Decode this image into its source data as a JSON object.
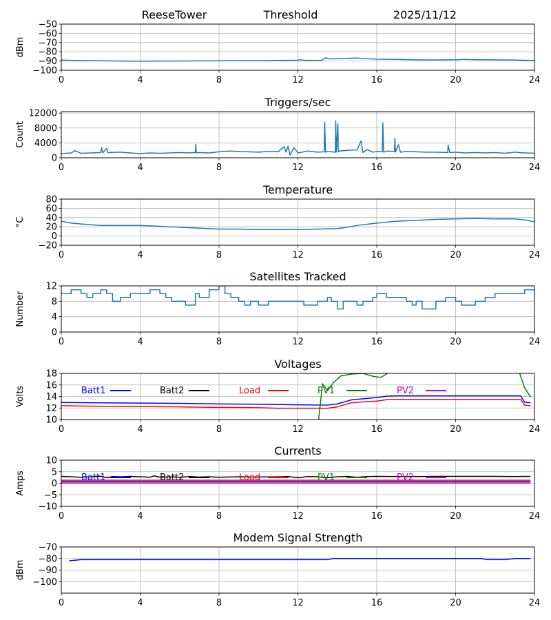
{
  "header": {
    "station": "ReeseTower",
    "plot": "Threshold",
    "date": "2025/11/12"
  },
  "chart_data": [
    {
      "type": "line",
      "title": "",
      "ylabel": "dBm",
      "xlim": [
        0,
        24
      ],
      "ylim": [
        -100,
        -50
      ],
      "xticks": [
        "0",
        "4",
        "8",
        "12",
        "16",
        "20",
        "24"
      ],
      "yticks": [
        "-100",
        "-90",
        "-80",
        "-70",
        "-60",
        "-50"
      ],
      "grid": true,
      "series": [
        {
          "name": "Threshold",
          "color": "#1f77b4",
          "x": [
            0,
            0.5,
            1,
            2,
            3,
            4,
            5,
            6,
            7,
            8,
            9,
            10,
            11,
            12,
            12.1,
            12.3,
            13.2,
            13.4,
            13.6,
            14,
            14.5,
            15,
            15.5,
            16,
            17,
            18,
            19,
            20,
            20.5,
            21,
            22,
            23,
            24
          ],
          "y": [
            -89,
            -89.3,
            -89.5,
            -89.7,
            -90,
            -90.2,
            -90,
            -90,
            -89.8,
            -89.7,
            -89.6,
            -89.6,
            -89.4,
            -89.2,
            -88.5,
            -89.3,
            -89.2,
            -86.5,
            -87.6,
            -87.5,
            -87,
            -86.8,
            -87.5,
            -88,
            -88.2,
            -88.7,
            -88.8,
            -88.6,
            -88.2,
            -88.5,
            -88.7,
            -88.9,
            -89.5
          ]
        }
      ]
    },
    {
      "type": "line",
      "title": "Triggers/sec",
      "ylabel": "Count",
      "xlim": [
        0,
        24
      ],
      "ylim": [
        0,
        12400
      ],
      "xticks": [
        "0",
        "4",
        "8",
        "12",
        "16",
        "20",
        "24"
      ],
      "yticks": [
        "0",
        "4000",
        "8000",
        "12000"
      ],
      "grid": true,
      "series": [
        {
          "name": "Triggers",
          "color": "#1f77b4",
          "x": [
            0,
            0.5,
            0.7,
            1,
            1.5,
            2,
            2.05,
            2.1,
            2.3,
            2.35,
            3,
            3.5,
            4,
            4.5,
            5,
            5.5,
            6,
            6.5,
            6.8,
            6.82,
            6.85,
            7,
            7.5,
            8,
            8.5,
            9,
            9.5,
            10,
            10.5,
            11,
            11.3,
            11.4,
            11.5,
            11.6,
            11.8,
            12,
            12.5,
            13,
            13.33,
            13.36,
            13.4,
            13.5,
            13.9,
            13.92,
            13.95,
            14.03,
            14.05,
            14.1,
            14.5,
            15,
            15.2,
            15.3,
            15.5,
            15.8,
            16,
            16.28,
            16.31,
            16.35,
            16.5,
            16.9,
            16.92,
            16.95,
            17.1,
            17.2,
            17.5,
            18,
            18.5,
            19,
            19.6,
            19.62,
            19.7,
            20,
            20.5,
            21,
            21.5,
            22,
            22.5,
            23,
            23.5,
            24
          ],
          "y": [
            1100,
            1300,
            1900,
            1200,
            1300,
            1400,
            2700,
            1300,
            2500,
            1400,
            1500,
            1300,
            1100,
            1300,
            1200,
            1300,
            1400,
            1300,
            1400,
            3600,
            1300,
            1400,
            1300,
            1600,
            1800,
            1700,
            1600,
            1500,
            1700,
            1600,
            3000,
            1500,
            3100,
            700,
            2700,
            1300,
            1800,
            1500,
            1600,
            9600,
            1500,
            1700,
            1500,
            9900,
            1500,
            9100,
            1600,
            1800,
            2000,
            2100,
            4500,
            1400,
            2200,
            1500,
            1700,
            1600,
            9400,
            1500,
            1800,
            1700,
            5200,
            1500,
            3500,
            1500,
            1700,
            1600,
            1500,
            1500,
            1400,
            3400,
            1400,
            1500,
            1300,
            1400,
            1300,
            1400,
            1200,
            1500,
            1300,
            1200
          ]
        }
      ]
    },
    {
      "type": "line",
      "title": "Temperature",
      "ylabel": "°C",
      "xlim": [
        0,
        24
      ],
      "ylim": [
        -20,
        80
      ],
      "xticks": [
        "0",
        "4",
        "8",
        "12",
        "16",
        "20",
        "24"
      ],
      "yticks": [
        "-20",
        "0",
        "20",
        "40",
        "60",
        "80"
      ],
      "grid": true,
      "series": [
        {
          "name": "Temperature",
          "color": "#1f77b4",
          "x": [
            0,
            0.5,
            1,
            2,
            3,
            4,
            5,
            6,
            7,
            7.5,
            8,
            9,
            10,
            11,
            12,
            13,
            14,
            14.5,
            15,
            16,
            17,
            18,
            19,
            20,
            21,
            22,
            23,
            23.5,
            24
          ],
          "y": [
            32,
            28,
            26,
            23,
            23,
            23,
            21,
            19,
            17,
            16,
            15,
            15,
            14,
            14,
            14,
            15,
            16,
            19,
            23,
            28,
            32,
            34,
            36,
            37,
            38,
            37,
            37,
            35,
            31
          ]
        }
      ]
    },
    {
      "type": "line",
      "step": true,
      "title": "Satellites Tracked",
      "ylabel": "Number",
      "xlim": [
        0,
        24
      ],
      "ylim": [
        0,
        12
      ],
      "xticks": [
        "0",
        "4",
        "8",
        "12",
        "16",
        "20",
        "24"
      ],
      "yticks": [
        "0",
        "4",
        "8",
        "12"
      ],
      "grid": true,
      "series": [
        {
          "name": "Satellites",
          "color": "#1f77b4",
          "x": [
            0,
            0.5,
            1,
            1.3,
            1.6,
            2,
            2.3,
            2.6,
            3,
            3.5,
            4,
            4.5,
            5,
            5.3,
            5.6,
            6,
            6.3,
            6.8,
            7,
            7.5,
            8,
            8.3,
            8.6,
            9,
            9.3,
            9.6,
            10,
            10.5,
            11,
            12,
            12.3,
            13,
            13.5,
            13.7,
            14,
            14.3,
            15,
            15.3,
            15.8,
            16,
            16.5,
            17,
            17.5,
            17.8,
            18,
            18.3,
            19,
            19.5,
            20,
            20.3,
            21,
            21.5,
            22,
            23,
            23.5,
            24
          ],
          "y": [
            10,
            11,
            10,
            9,
            10,
            11,
            10,
            8,
            9,
            10,
            10,
            11,
            10,
            9,
            8,
            8,
            7,
            10,
            9,
            11,
            12,
            10,
            9,
            8,
            7,
            8,
            7,
            8,
            8,
            8,
            7,
            8,
            9,
            8,
            6,
            8,
            7,
            8,
            9,
            10,
            9,
            9,
            8,
            7,
            8,
            6,
            8,
            9,
            8,
            7,
            8,
            9,
            10,
            10,
            11,
            9
          ]
        }
      ]
    },
    {
      "type": "line",
      "title": "Voltages",
      "ylabel": "Volts",
      "xlim": [
        0,
        24
      ],
      "ylim": [
        10,
        18
      ],
      "xticks": [
        "0",
        "4",
        "8",
        "12",
        "16",
        "20",
        "24"
      ],
      "yticks": [
        "10",
        "12",
        "14",
        "16",
        "18"
      ],
      "grid": true,
      "legend": [
        "Batt1",
        "Batt2",
        "Load",
        "PV1",
        "PV2"
      ],
      "series": [
        {
          "name": "Batt1",
          "color": "#0000ff",
          "x": [
            0,
            2,
            4,
            6,
            8,
            10,
            12,
            13.5,
            14,
            14.7,
            15.5,
            16,
            16.5,
            17,
            20,
            23.3,
            23.5,
            23.8
          ],
          "y": [
            12.95,
            12.9,
            12.85,
            12.8,
            12.7,
            12.65,
            12.55,
            12.5,
            12.7,
            13.4,
            13.65,
            13.8,
            14.05,
            14.1,
            14.1,
            14.1,
            13.0,
            12.9
          ]
        },
        {
          "name": "Batt2",
          "color": "#000000",
          "x": [],
          "y": []
        },
        {
          "name": "Load",
          "color": "#ff0000",
          "x": [
            0,
            2,
            4,
            6,
            8,
            10,
            11,
            12,
            13.5,
            14,
            14.7,
            15.5,
            16,
            16.5,
            17,
            20,
            23.3,
            23.5,
            23.8
          ],
          "y": [
            12.4,
            12.3,
            12.25,
            12.2,
            12.1,
            12.05,
            11.95,
            11.95,
            11.95,
            12.2,
            12.9,
            13.1,
            13.2,
            13.45,
            13.5,
            13.5,
            13.5,
            12.5,
            12.4
          ]
        },
        {
          "name": "PV1",
          "color": "#008000",
          "x": [
            0,
            0.05,
            13.05,
            13.25,
            13.5,
            13.8,
            14.2,
            14.8,
            15.3,
            15.8,
            16.2,
            16.5,
            16.8,
            23.2,
            23.5,
            23.8
          ],
          "y": [
            10.2,
            9.5,
            9.9,
            16.2,
            15.0,
            16.4,
            17.6,
            17.9,
            18.0,
            17.5,
            17.3,
            17.9,
            18.5,
            18.5,
            15.5,
            13.9
          ]
        },
        {
          "name": "PV2",
          "color": "#bf00bf",
          "x": [],
          "y": []
        }
      ]
    },
    {
      "type": "line",
      "title": "Currents",
      "ylabel": "Amps",
      "xlim": [
        0,
        24
      ],
      "ylim": [
        -10,
        10
      ],
      "xticks": [
        "0",
        "4",
        "8",
        "12",
        "16",
        "20",
        "24"
      ],
      "yticks": [
        "-10",
        "-5",
        "0",
        "5",
        "10"
      ],
      "grid": true,
      "legend": [
        "Batt1",
        "Batt2",
        "Load",
        "PV1",
        "PV2"
      ],
      "series": [
        {
          "name": "Batt1",
          "color": "#0000ff",
          "x": [
            0,
            23.8
          ],
          "y": [
            0.7,
            0.7
          ]
        },
        {
          "name": "Batt2",
          "color": "#000000",
          "x": [
            0,
            0.5,
            1,
            1.5,
            2,
            2.3,
            2.6,
            3,
            3.5,
            4,
            4.5,
            4.7,
            5,
            5.5,
            6,
            6.5,
            7,
            7.5,
            8,
            9,
            10,
            11,
            11.5,
            12,
            12.5,
            13,
            13.5,
            14,
            14.5,
            15,
            15.5,
            16,
            17,
            18,
            19,
            20,
            21,
            22,
            23,
            23.8
          ],
          "y": [
            3,
            2.8,
            2.6,
            2.8,
            3,
            2.4,
            2.9,
            2.8,
            3,
            2.8,
            2.6,
            3.2,
            2.6,
            2.8,
            2.6,
            2.9,
            2.7,
            2.8,
            2.6,
            2.8,
            2.7,
            2.8,
            2.9,
            2.4,
            2.9,
            2.8,
            2.4,
            2.8,
            3,
            2.6,
            2.9,
            3,
            2.9,
            2.9,
            3,
            3,
            3,
            3,
            2.9,
            3
          ]
        },
        {
          "name": "Load",
          "color": "#ff0000",
          "x": [
            0,
            23.8
          ],
          "y": [
            1.3,
            1.3
          ]
        },
        {
          "name": "PV1",
          "color": "#008000",
          "x": [
            0,
            23.8
          ],
          "y": [
            0.1,
            0.1
          ]
        },
        {
          "name": "PV2",
          "color": "#bf00bf",
          "x": [
            0,
            23.8
          ],
          "y": [
            0.1,
            0.1
          ]
        }
      ]
    },
    {
      "type": "line",
      "title": "Modem Signal Strength",
      "ylabel": "dBm",
      "xlim": [
        0,
        24
      ],
      "ylim": [
        -110,
        -70
      ],
      "xticks": [
        "0",
        "4",
        "8",
        "12",
        "16",
        "20",
        "24"
      ],
      "yticks": [
        "-100",
        "-90",
        "-80",
        "-70"
      ],
      "grid": true,
      "series": [
        {
          "name": "Modem",
          "color": "#0000ff",
          "x": [
            0.4,
            1,
            13.5,
            13.8,
            21.3,
            21.6,
            22.5,
            23,
            23.8
          ],
          "y": [
            -82,
            -81,
            -81,
            -80,
            -80,
            -81,
            -81,
            -80,
            -80
          ]
        }
      ]
    }
  ]
}
